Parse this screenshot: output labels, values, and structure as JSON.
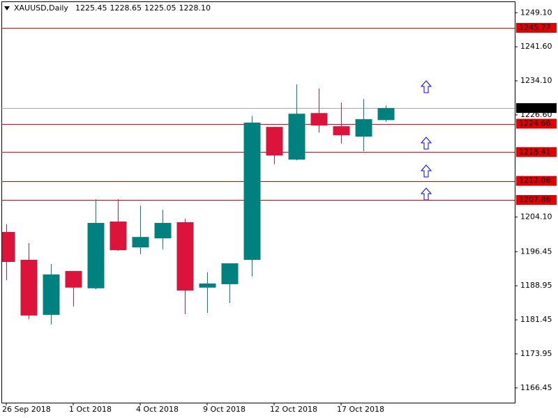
{
  "chart_data": {
    "type": "candlestick",
    "symbol": "XAUUSD,Daily",
    "header_values": [
      "1225.45",
      "1228.65",
      "1225.05",
      "1228.10"
    ],
    "categories": [
      "26 Sep 2018",
      null,
      null,
      "1 Oct 2018",
      null,
      null,
      "4 Oct 2018",
      null,
      null,
      "9 Oct 2018",
      null,
      null,
      "12 Oct 2018",
      null,
      null,
      "17 Oct 2018",
      null,
      null
    ],
    "open": [
      1200.8,
      1194.67,
      1182.55,
      1192.2,
      1188.4,
      1203.1,
      1197.4,
      1199.4,
      1202.95,
      1188.55,
      1189.3,
      1194.67,
      1223.95,
      1216.75,
      1227.0,
      1224.1,
      1221.8,
      1225.45
    ],
    "high": [
      1202.5,
      1198.35,
      1193.75,
      1192.2,
      1208.0,
      1208.0,
      1206.6,
      1205.7,
      1203.7,
      1191.9,
      1193.9,
      1226.4,
      1223.95,
      1233.3,
      1232.4,
      1229.3,
      1230.1,
      1228.65
    ],
    "low": [
      1190.2,
      1181.6,
      1180.4,
      1184.4,
      1188.2,
      1196.65,
      1195.9,
      1197.0,
      1182.7,
      1183.0,
      1185.15,
      1191.0,
      1215.7,
      1216.6,
      1222.7,
      1220.3,
      1218.6,
      1225.05
    ],
    "close": [
      1194.2,
      1182.4,
      1191.45,
      1188.55,
      1202.8,
      1196.8,
      1199.7,
      1202.8,
      1187.9,
      1189.45,
      1193.9,
      1224.9,
      1217.65,
      1226.85,
      1224.25,
      1222.1,
      1225.65,
      1228.1
    ],
    "up_color": "#00807f",
    "down_color": "#dc143c",
    "ylim": [
      1163.2,
      1251.6
    ],
    "yticks": [
      {
        "value": 1249.1,
        "label": "1249.10"
      },
      {
        "value": 1241.6,
        "label": "1241.60"
      },
      {
        "value": 1234.1,
        "label": "1234.10"
      },
      {
        "value": 1226.6,
        "label": "1226.60"
      },
      {
        "value": 1204.1,
        "label": "1204.10"
      },
      1196.45,
      1188.95,
      1181.45,
      1173.95,
      1166.45
    ],
    "levels": [
      1245.77,
      1224.66,
      1218.41,
      1212.06,
      1207.86
    ],
    "level_color": "#e00000",
    "current_price": {
      "value": 1228.1,
      "label": "1228.10"
    },
    "current_price_color": "#a0a8b0"
  }
}
